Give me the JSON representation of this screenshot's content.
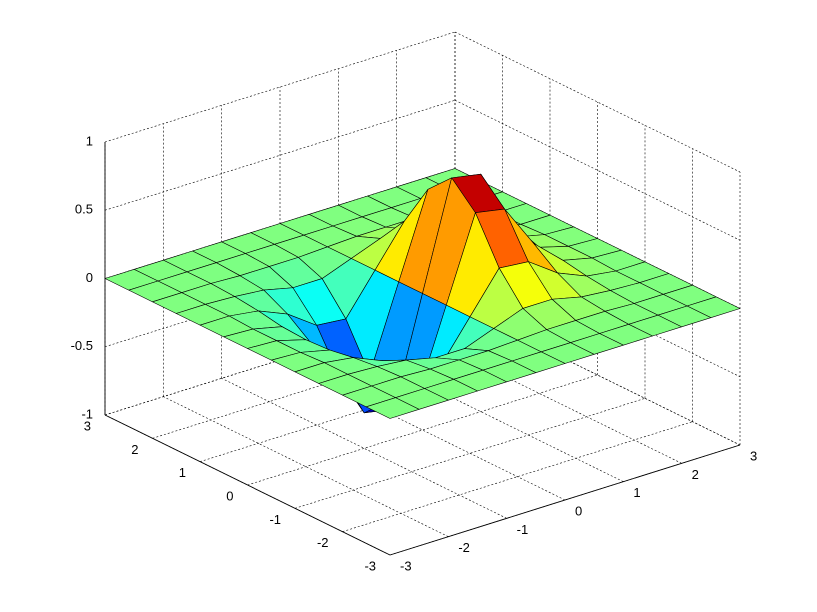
{
  "chart_data": {
    "type": "surface",
    "x": [
      -3,
      -2.5,
      -2,
      -1.5,
      -1,
      -0.5,
      0,
      0.5,
      1,
      1.5,
      2,
      2.5,
      3
    ],
    "y": [
      -3,
      -2.5,
      -2,
      -1.5,
      -1,
      -0.5,
      0,
      0.5,
      1,
      1.5,
      2,
      2.5,
      3
    ],
    "z": [
      [
        0,
        0,
        0,
        0,
        0,
        0,
        0,
        0,
        0,
        0,
        0,
        0,
        0
      ],
      [
        0,
        0,
        0,
        0,
        0,
        0,
        0,
        0,
        0,
        0,
        0,
        0,
        0
      ],
      [
        0,
        0,
        0,
        -0.01,
        -0.01,
        -0.01,
        0,
        0.01,
        0.01,
        0.01,
        0,
        0,
        0
      ],
      [
        0,
        0,
        -0.01,
        -0.03,
        -0.08,
        -0.08,
        0,
        0.08,
        0.08,
        0.03,
        0.01,
        0,
        0
      ],
      [
        0,
        0,
        -0.03,
        -0.12,
        -0.27,
        -0.29,
        0,
        0.29,
        0.27,
        0.12,
        0.03,
        0,
        0
      ],
      [
        0,
        -0.01,
        -0.06,
        -0.25,
        -0.57,
        -0.61,
        0,
        0.61,
        0.57,
        0.25,
        0.06,
        0.01,
        0
      ],
      [
        0,
        -0.01,
        -0.07,
        -0.32,
        -0.74,
        -0.78,
        0,
        0.78,
        0.74,
        0.32,
        0.07,
        0.01,
        0
      ],
      [
        0,
        -0.01,
        -0.06,
        -0.25,
        -0.57,
        -0.61,
        0,
        0.61,
        0.57,
        0.25,
        0.06,
        0.01,
        0
      ],
      [
        0,
        0,
        -0.03,
        -0.12,
        -0.27,
        -0.29,
        0,
        0.29,
        0.27,
        0.12,
        0.03,
        0,
        0
      ],
      [
        0,
        0,
        -0.01,
        -0.03,
        -0.08,
        -0.08,
        0,
        0.08,
        0.08,
        0.03,
        0.01,
        0,
        0
      ],
      [
        0,
        0,
        0,
        -0.01,
        -0.01,
        -0.01,
        0,
        0.01,
        0.01,
        0.01,
        0,
        0,
        0
      ],
      [
        0,
        0,
        0,
        0,
        0,
        0,
        0,
        0,
        0,
        0,
        0,
        0,
        0
      ],
      [
        0,
        0,
        0,
        0,
        0,
        0,
        0,
        0,
        0,
        0,
        0,
        0,
        0
      ]
    ],
    "xlim": [
      -3,
      3
    ],
    "ylim": [
      -3,
      3
    ],
    "zlim": [
      -1,
      1
    ],
    "xticks": [
      -3,
      -2,
      -1,
      0,
      1,
      2,
      3
    ],
    "yticks": [
      -3,
      -2,
      -1,
      0,
      1,
      2,
      3
    ],
    "zticks": [
      -1,
      -0.5,
      0,
      0.5,
      1
    ],
    "grid": true,
    "colormap": "jet"
  }
}
